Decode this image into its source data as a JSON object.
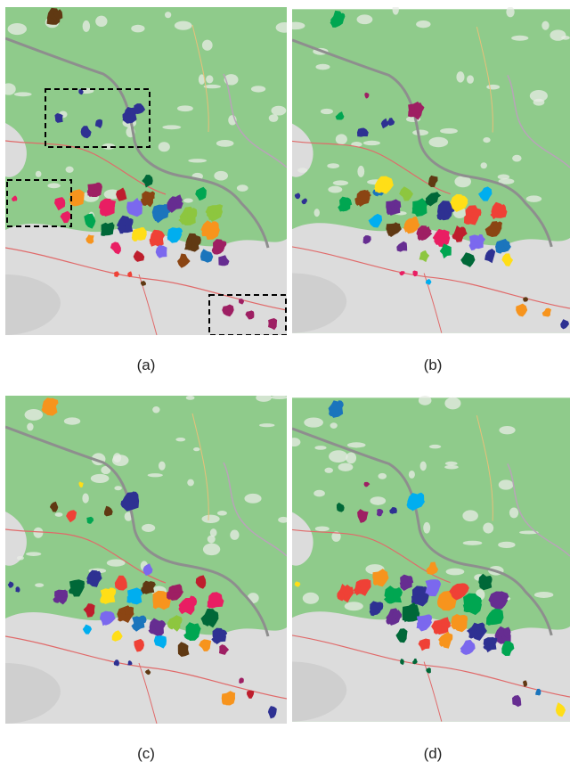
{
  "figure": {
    "panels": [
      {
        "id": "a",
        "caption": "(a)",
        "has_highlight_boxes": true
      },
      {
        "id": "b",
        "caption": "(b)",
        "has_highlight_boxes": false
      },
      {
        "id": "c",
        "caption": "(c)",
        "has_highlight_boxes": false
      },
      {
        "id": "d",
        "caption": "(d)",
        "has_highlight_boxes": false
      }
    ]
  },
  "map": {
    "forest_color": "#8fcb8b",
    "urban_color": "#dcdcdc",
    "road_color": "#e06a6a",
    "border_color": "#8e8e8e",
    "highlight_box_color": "#000000",
    "palette": [
      "#2e3192",
      "#e91e63",
      "#00a651",
      "#f7941d",
      "#662d91",
      "#00aeef",
      "#8b4513",
      "#ffde17",
      "#be1e2d",
      "#006838",
      "#9e1f63",
      "#8dc63f",
      "#603913",
      "#1b75bc",
      "#ef4136",
      "#7b68ee"
    ]
  }
}
